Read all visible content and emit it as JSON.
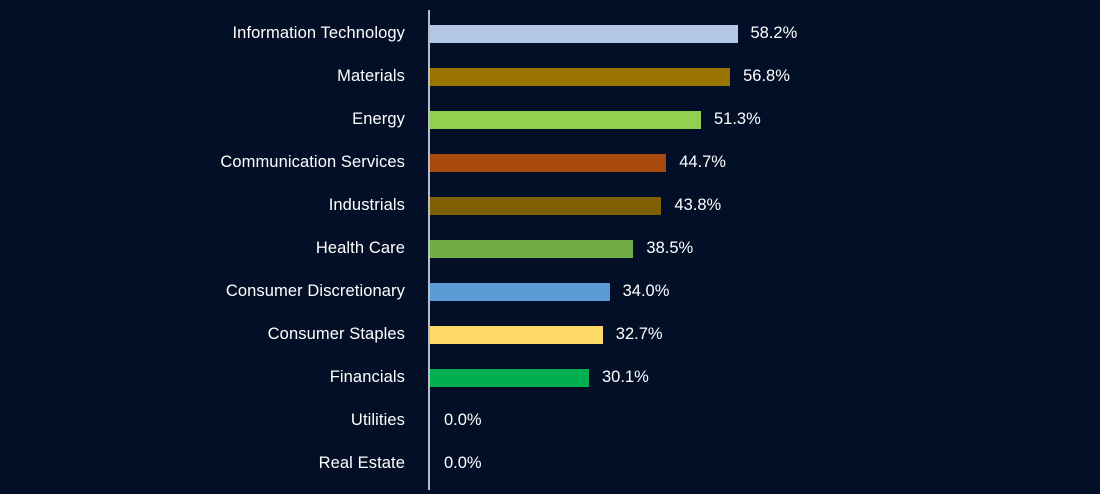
{
  "chart_data": {
    "type": "bar",
    "orientation": "horizontal",
    "title": "",
    "categories": [
      "Information Technology",
      "Materials",
      "Energy",
      "Communication Services",
      "Industrials",
      "Health Care",
      "Consumer Discretionary",
      "Consumer Staples",
      "Financials",
      "Utilities",
      "Real Estate"
    ],
    "values": [
      58.2,
      56.8,
      51.3,
      44.7,
      43.8,
      38.5,
      34.0,
      32.7,
      30.1,
      0.0,
      0.0
    ],
    "value_labels": [
      "58.2%",
      "56.8%",
      "51.3%",
      "44.7%",
      "43.8%",
      "38.5%",
      "34.0%",
      "32.7%",
      "30.1%",
      "0.0%",
      "0.0%"
    ],
    "bar_colors": [
      "#b4c7e7",
      "#9a7400",
      "#92d050",
      "#a8490d",
      "#7f6000",
      "#70ad47",
      "#5b9bd5",
      "#ffd966",
      "#00b050",
      null,
      null
    ],
    "xlabel": "",
    "ylabel": "",
    "xlim": [
      0,
      60
    ],
    "grid": false,
    "legend": false,
    "background_color": "#030f26",
    "axis_line_color": "#b8bfc9",
    "text_color": "#ffffff"
  }
}
